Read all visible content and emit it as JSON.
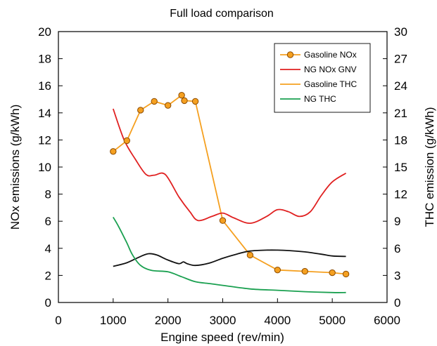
{
  "chart_data": {
    "type": "line",
    "title": "Full load comparison",
    "xlabel": "Engine speed (rev/min)",
    "ylabel": "NOx emissions (g/kWh)",
    "y2label": "THC emission (g/kWh)",
    "xlim": [
      0,
      6000
    ],
    "ylim": [
      0,
      20
    ],
    "y2lim": [
      0,
      30
    ],
    "xticks": [
      "0",
      "1000",
      "2000",
      "3000",
      "4000",
      "5000",
      "6000"
    ],
    "yticks": [
      "0",
      "2",
      "4",
      "6",
      "8",
      "10",
      "12",
      "14",
      "16",
      "18",
      "20"
    ],
    "y2ticks": [
      "0",
      "3",
      "6",
      "9",
      "12",
      "15",
      "18",
      "21",
      "24",
      "27",
      "30"
    ],
    "grid": false,
    "legend_position": "top-right",
    "legend": [
      "Gasoline NOx",
      "NG NOx GNV",
      "Gasoline THC",
      "NG THC"
    ],
    "series": [
      {
        "name": "Gasoline NOx",
        "axis": "left",
        "color": "#f5a020",
        "marker": "circle",
        "x": [
          1000,
          1250,
          1500,
          1750,
          2000,
          2250,
          2300,
          2500,
          3000,
          3500,
          4000,
          4500,
          5000,
          5250
        ],
        "y": [
          11.15,
          11.95,
          14.2,
          14.85,
          14.55,
          15.3,
          14.9,
          14.85,
          6.05,
          3.5,
          2.4,
          2.3,
          2.2,
          2.1
        ]
      },
      {
        "name": "NG NOx GNV",
        "axis": "left",
        "color": "#e02020",
        "x": [
          1000,
          1200,
          1400,
          1600,
          1750,
          1950,
          2200,
          2400,
          2550,
          2800,
          3000,
          3200,
          3500,
          3800,
          4000,
          4200,
          4400,
          4600,
          4800,
          5000,
          5250
        ],
        "y": [
          14.3,
          12.0,
          10.6,
          9.45,
          9.4,
          9.45,
          7.8,
          6.7,
          6.05,
          6.35,
          6.6,
          6.25,
          5.85,
          6.35,
          6.85,
          6.7,
          6.35,
          6.7,
          7.9,
          8.9,
          9.55
        ]
      },
      {
        "name": "Gasoline THC",
        "axis": "right",
        "color": "#111111",
        "x": [
          1000,
          1250,
          1500,
          1650,
          1800,
          2000,
          2200,
          2280,
          2350,
          2500,
          2750,
          3000,
          3250,
          3500,
          3800,
          4000,
          4200,
          4500,
          4800,
          5000,
          5250
        ],
        "y": [
          4.0,
          4.4,
          5.1,
          5.4,
          5.25,
          4.7,
          4.3,
          4.5,
          4.3,
          4.1,
          4.35,
          4.9,
          5.35,
          5.7,
          5.8,
          5.8,
          5.75,
          5.6,
          5.35,
          5.15,
          5.1
        ]
      },
      {
        "name": "NG THC",
        "axis": "right",
        "color": "#1aa050",
        "x": [
          1000,
          1100,
          1250,
          1350,
          1500,
          1700,
          2000,
          2250,
          2500,
          2750,
          3000,
          3500,
          4000,
          4500,
          5000,
          5250
        ],
        "y": [
          9.45,
          8.4,
          6.6,
          5.3,
          4.1,
          3.55,
          3.4,
          2.85,
          2.3,
          2.1,
          1.9,
          1.5,
          1.35,
          1.2,
          1.1,
          1.1
        ]
      }
    ]
  },
  "colors": {
    "axis": "#000000",
    "legend_border": "#000000",
    "marker_edge": "#8b4a00",
    "marker_fill": "#f5a020"
  }
}
